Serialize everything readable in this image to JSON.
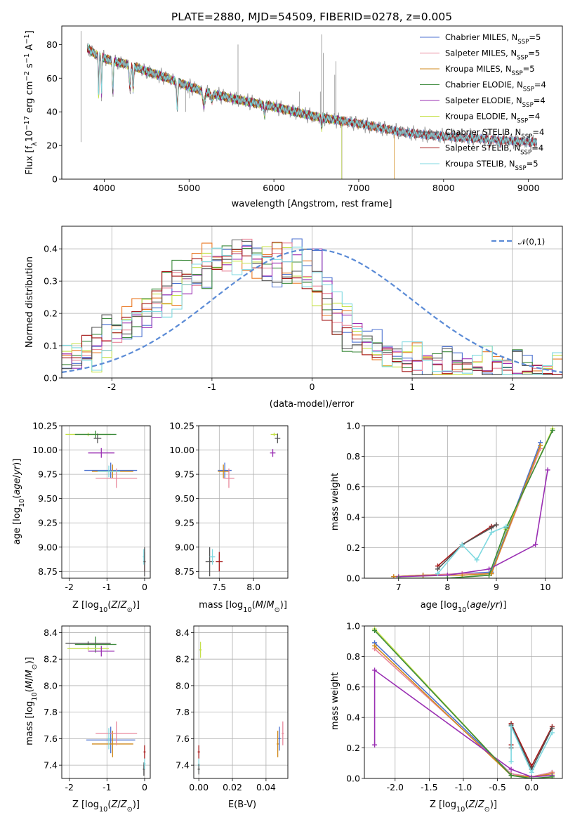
{
  "figure": {
    "title": "PLATE=2880, MJD=54509, FIBERID=0278, z=0.005"
  },
  "colors": {
    "Chabrier MILES": "#4c72d0",
    "Salpeter MILES": "#e9879b",
    "Kroupa MILES": "#d08a1c",
    "Chabrier ELODIE": "#3c8a3c",
    "Salpeter ELODIE": "#9a2fb3",
    "Kroupa ELODIE": "#c6e14a",
    "Chabrier STELIB": "#555555",
    "Salpeter STELIB": "#a51818",
    "Kroupa STELIB": "#7fd9e0",
    "hist_orange": "#ea7a26",
    "normal_curve": "#5b8bd6"
  },
  "chart_data": [
    {
      "id": "spectrum",
      "type": "line",
      "title": "PLATE=2880, MJD=54509, FIBERID=0278, z=0.005",
      "xlabel": "wavelength [Angstrom, rest frame]",
      "ylabel": "Flux [f_λ 10^-17 erg cm^-2 s^-1 A^-1]",
      "xlim": [
        3500,
        9400
      ],
      "ylim": [
        0,
        91
      ],
      "xticks": [
        4000,
        5000,
        6000,
        7000,
        8000,
        9000
      ],
      "yticks": [
        0,
        20,
        40,
        60,
        80
      ],
      "legend_loc": "upper right",
      "legend": [
        "Chabrier MILES, N_SSP=5",
        "Salpeter MILES, N_SSP=5",
        "Kroupa MILES, N_SSP=5",
        "Chabrier ELODIE, N_SSP=4",
        "Salpeter ELODIE, N_SSP=4",
        "Kroupa ELODIE, N_SSP=4",
        "Chabrier STELIB, N_SSP=4",
        "Salpeter STELIB, N_SSP=4",
        "Kroupa STELIB, N_SSP=5"
      ],
      "continuum": [
        [
          3800,
          78
        ],
        [
          3900,
          74
        ],
        [
          4000,
          72
        ],
        [
          4100,
          70
        ],
        [
          4200,
          69
        ],
        [
          4300,
          68
        ],
        [
          4500,
          64
        ],
        [
          4750,
          60
        ],
        [
          5000,
          55
        ],
        [
          5250,
          51
        ],
        [
          5500,
          48
        ],
        [
          5750,
          45.5
        ],
        [
          6000,
          43
        ],
        [
          6250,
          40
        ],
        [
          6500,
          37
        ],
        [
          6750,
          35
        ],
        [
          7000,
          33
        ],
        [
          7250,
          30.5
        ],
        [
          7500,
          28
        ],
        [
          7750,
          26.5
        ],
        [
          8000,
          25.5
        ],
        [
          8250,
          24.5
        ],
        [
          8500,
          24
        ],
        [
          8750,
          23
        ],
        [
          9000,
          22
        ],
        [
          9100,
          22
        ]
      ]
    },
    {
      "id": "residuals",
      "type": "line",
      "xlabel": "(data-model)/error",
      "ylabel": "Normed distribution",
      "xlim": [
        -2.5,
        2.5
      ],
      "ylim": [
        0,
        0.47
      ],
      "xticks": [
        -2,
        -1,
        0,
        1,
        2
      ],
      "yticks": [
        0.0,
        0.1,
        0.2,
        0.3,
        0.4
      ],
      "grid": true,
      "legend_loc": "upper right",
      "curve_label": "𝒩(0,1)",
      "curve": "standard normal pdf",
      "bin_width": 0.1,
      "hist_template": [
        0.07,
        0.06,
        0.05,
        0.07,
        0.06,
        0.08,
        0.07,
        0.12,
        0.11,
        0.14,
        0.13,
        0.16,
        0.15,
        0.18,
        0.17,
        0.22,
        0.2,
        0.25,
        0.24,
        0.27,
        0.26,
        0.31,
        0.28,
        0.32,
        0.3,
        0.34,
        0.36,
        0.38,
        0.33,
        0.37,
        0.35,
        0.36,
        0.39,
        0.41,
        0.38,
        0.37,
        0.33,
        0.36,
        0.34,
        0.38,
        0.35,
        0.4,
        0.32,
        0.31,
        0.33,
        0.38,
        0.27,
        0.3,
        0.25,
        0.22,
        0.19,
        0.17,
        0.15,
        0.14,
        0.12,
        0.11,
        0.1,
        0.09,
        0.08,
        0.07,
        0.06,
        0.07,
        0.05,
        0.06,
        0.04,
        0.05,
        0.05,
        0.04,
        0.04,
        0.03,
        0.05,
        0.03,
        0.04,
        0.03,
        0.04,
        0.03,
        0.04,
        0.04,
        0.03,
        0.03,
        0.03,
        0.03,
        0.02,
        0.03,
        0.03,
        0.02,
        0.02,
        0.02,
        0.02,
        0.02
      ]
    },
    {
      "id": "age_vs_Z",
      "type": "scatter",
      "xlabel": "Z [log10(Z/Z⊙)]",
      "ylabel": "age  [log10(age/yr)]",
      "xlim": [
        -2.2,
        0.15
      ],
      "ylim": [
        8.68,
        10.25
      ],
      "xticks": [
        -2,
        -1,
        0
      ],
      "yticks": [
        8.75,
        9.0,
        9.25,
        9.5,
        9.75,
        10.0,
        10.25
      ],
      "grid": true,
      "points": [
        {
          "model": "Kroupa ELODIE",
          "x": -1.5,
          "y": 10.16,
          "xerr": 0.6,
          "yerr": 0.0
        },
        {
          "model": "Chabrier ELODIE",
          "x": -1.3,
          "y": 10.16,
          "xerr": 0.55,
          "yerr": 0.04
        },
        {
          "model": "Chabrier STELIB",
          "x": -1.25,
          "y": 10.12,
          "xerr": 0.1,
          "yerr": 0.05
        },
        {
          "model": "Salpeter ELODIE",
          "x": -1.15,
          "y": 9.97,
          "xerr": 0.35,
          "yerr": 0.05
        },
        {
          "model": "Chabrier MILES",
          "x": -0.9,
          "y": 9.79,
          "xerr": 0.7,
          "yerr": 0.08
        },
        {
          "model": "Kroupa MILES",
          "x": -0.85,
          "y": 9.78,
          "xerr": 0.55,
          "yerr": 0.07
        },
        {
          "model": "Salpeter MILES",
          "x": -0.75,
          "y": 9.71,
          "xerr": 0.55,
          "yerr": 0.1
        },
        {
          "model": "Kroupa STELIB",
          "x": -0.95,
          "y": 9.78,
          "xerr": 0.3,
          "yerr": 0.06
        },
        {
          "model": "Salpeter STELIB",
          "x": 0.0,
          "y": 8.85,
          "xerr": 0.0,
          "yerr": 0.1
        },
        {
          "model": "Kroupa STELIB",
          "x": -0.02,
          "y": 8.9,
          "xerr": 0.0,
          "yerr": 0.08
        },
        {
          "model": "Chabrier STELIB",
          "x": 0.0,
          "y": 8.85,
          "xerr": 0.0,
          "yerr": 0.15
        }
      ]
    },
    {
      "id": "age_vs_mass",
      "type": "scatter",
      "xlabel": "mass [log10(M/M⊙)]",
      "ylabel": "",
      "xlim": [
        7.2,
        8.5
      ],
      "ylim": [
        8.68,
        10.25
      ],
      "xticks": [
        7.5,
        8.0
      ],
      "yticks": [
        8.75,
        9.0,
        9.25,
        9.5,
        9.75,
        10.0,
        10.25
      ],
      "grid": true,
      "points": [
        {
          "model": "Kroupa ELODIE",
          "x": 8.3,
          "y": 10.16,
          "xerr": 0.05,
          "yerr": 0.01
        },
        {
          "model": "Chabrier STELIB",
          "x": 8.35,
          "y": 10.12,
          "xerr": 0.04,
          "yerr": 0.05
        },
        {
          "model": "Salpeter ELODIE",
          "x": 8.28,
          "y": 9.97,
          "xerr": 0.04,
          "yerr": 0.04
        },
        {
          "model": "Chabrier MILES",
          "x": 7.58,
          "y": 9.79,
          "xerr": 0.1,
          "yerr": 0.08
        },
        {
          "model": "Kroupa MILES",
          "x": 7.56,
          "y": 9.78,
          "xerr": 0.08,
          "yerr": 0.07
        },
        {
          "model": "Salpeter MILES",
          "x": 7.64,
          "y": 9.71,
          "xerr": 0.08,
          "yerr": 0.1
        },
        {
          "model": "Chabrier STELIB",
          "x": 7.36,
          "y": 8.85,
          "xerr": 0.06,
          "yerr": 0.15
        },
        {
          "model": "Kroupa STELIB",
          "x": 7.4,
          "y": 8.9,
          "xerr": 0.04,
          "yerr": 0.08
        },
        {
          "model": "Salpeter STELIB",
          "x": 7.5,
          "y": 8.85,
          "xerr": 0.05,
          "yerr": 0.1
        }
      ]
    },
    {
      "id": "weight_vs_age",
      "type": "line",
      "xlabel": "age  [log10(age/yr)]",
      "ylabel": "mass weight",
      "xlim": [
        6.3,
        10.35
      ],
      "ylim": [
        0,
        1.0
      ],
      "xticks": [
        7,
        8,
        9,
        10
      ],
      "yticks": [
        0.0,
        0.2,
        0.4,
        0.6,
        0.8,
        1.0
      ],
      "grid": true,
      "series": [
        {
          "model": "Chabrier MILES",
          "x": [
            6.9,
            7.5,
            8.3,
            8.9,
            9.9
          ],
          "y": [
            0.01,
            0.02,
            0.03,
            0.04,
            0.89
          ]
        },
        {
          "model": "Salpeter MILES",
          "x": [
            6.9,
            7.5,
            8.3,
            8.9,
            9.9
          ],
          "y": [
            0.01,
            0.02,
            0.03,
            0.03,
            0.85
          ]
        },
        {
          "model": "Kroupa MILES",
          "x": [
            6.9,
            7.5,
            8.3,
            8.9,
            9.9
          ],
          "y": [
            0.01,
            0.02,
            0.02,
            0.03,
            0.87
          ]
        },
        {
          "model": "Salpeter ELODIE",
          "x": [
            7.0,
            8.0,
            8.85,
            9.8,
            10.05
          ],
          "y": [
            0.01,
            0.02,
            0.06,
            0.22,
            0.71
          ]
        },
        {
          "model": "Kroupa ELODIE",
          "x": [
            7.0,
            8.0,
            8.85,
            9.2,
            10.15
          ],
          "y": [
            0.0,
            0.0,
            0.02,
            0.32,
            0.98
          ]
        },
        {
          "model": "Chabrier ELODIE",
          "x": [
            7.0,
            8.0,
            8.85,
            9.2,
            10.15
          ],
          "y": [
            0.0,
            0.0,
            0.02,
            0.33,
            0.97
          ]
        },
        {
          "model": "Salpeter STELIB",
          "x": [
            7.8,
            8.3,
            8.9,
            9.0
          ],
          "y": [
            0.08,
            0.22,
            0.34,
            0.35
          ]
        },
        {
          "model": "Chabrier STELIB",
          "x": [
            7.8,
            8.3,
            8.9,
            9.0
          ],
          "y": [
            0.06,
            0.22,
            0.33,
            0.35
          ]
        },
        {
          "model": "Kroupa STELIB",
          "x": [
            7.8,
            8.3,
            8.6,
            8.9,
            9.2
          ],
          "y": [
            0.03,
            0.22,
            0.12,
            0.3,
            0.34
          ]
        }
      ]
    },
    {
      "id": "mass_vs_Z",
      "type": "scatter",
      "xlabel": "Z [log10(Z/Z⊙)]",
      "ylabel": "mass [log10(M/M⊙)]",
      "xlim": [
        -2.2,
        0.15
      ],
      "ylim": [
        7.3,
        8.45
      ],
      "xticks": [
        -2,
        -1,
        0
      ],
      "yticks": [
        7.4,
        7.6,
        7.8,
        8.0,
        8.2,
        8.4
      ],
      "grid": true,
      "points": [
        {
          "model": "Chabrier ELODIE",
          "x": -1.3,
          "y": 8.31,
          "xerr": 0.55,
          "yerr": 0.06
        },
        {
          "model": "Chabrier STELIB",
          "x": -1.5,
          "y": 8.32,
          "xerr": 0.6,
          "yerr": 0.0
        },
        {
          "model": "Kroupa ELODIE",
          "x": -1.5,
          "y": 8.28,
          "xerr": 0.55,
          "yerr": 0.0
        },
        {
          "model": "Salpeter ELODIE",
          "x": -1.15,
          "y": 8.26,
          "xerr": 0.35,
          "yerr": 0.04
        },
        {
          "model": "Chabrier MILES",
          "x": -0.9,
          "y": 7.59,
          "xerr": 0.65,
          "yerr": 0.1
        },
        {
          "model": "Kroupa MILES",
          "x": -0.85,
          "y": 7.56,
          "xerr": 0.55,
          "yerr": 0.1
        },
        {
          "model": "Salpeter MILES",
          "x": -0.75,
          "y": 7.64,
          "xerr": 0.55,
          "yerr": 0.09
        },
        {
          "model": "Kroupa STELIB",
          "x": -0.95,
          "y": 7.6,
          "xerr": 0.0,
          "yerr": 0.08
        },
        {
          "model": "Salpeter STELIB",
          "x": 0.0,
          "y": 7.5,
          "xerr": 0.0,
          "yerr": 0.05
        },
        {
          "model": "Chabrier STELIB",
          "x": -0.02,
          "y": 7.37,
          "xerr": 0.0,
          "yerr": 0.05
        },
        {
          "model": "Kroupa STELIB",
          "x": 0.0,
          "y": 7.41,
          "xerr": 0.0,
          "yerr": 0.04
        }
      ]
    },
    {
      "id": "mass_vs_EBV",
      "type": "scatter",
      "xlabel": "E(B-V)",
      "ylabel": "",
      "xlim": [
        -0.003,
        0.053
      ],
      "ylim": [
        7.3,
        8.45
      ],
      "xticks": [
        0.0,
        0.02,
        0.04
      ],
      "yticks": [
        7.4,
        7.6,
        7.8,
        8.0,
        8.2,
        8.4
      ],
      "grid": true,
      "points": [
        {
          "model": "Kroupa ELODIE",
          "x": 0.001,
          "y": 8.27,
          "xerr": 0.0,
          "yerr": 0.06
        },
        {
          "model": "Salpeter STELIB",
          "x": 0.0,
          "y": 7.5,
          "xerr": 0.0,
          "yerr": 0.05
        },
        {
          "model": "Kroupa STELIB",
          "x": 0.0,
          "y": 7.4,
          "xerr": 0.0,
          "yerr": 0.05
        },
        {
          "model": "Chabrier STELIB",
          "x": 0.0,
          "y": 7.37,
          "xerr": 0.0,
          "yerr": 0.04
        },
        {
          "model": "Kroupa MILES",
          "x": 0.047,
          "y": 7.56,
          "xerr": 0.0,
          "yerr": 0.1
        },
        {
          "model": "Chabrier MILES",
          "x": 0.048,
          "y": 7.6,
          "xerr": 0.0,
          "yerr": 0.09
        },
        {
          "model": "Salpeter MILES",
          "x": 0.05,
          "y": 7.64,
          "xerr": 0.0,
          "yerr": 0.09
        }
      ]
    },
    {
      "id": "weight_vs_Z",
      "type": "line",
      "xlabel": "Z [log10(Z/Z⊙)]",
      "ylabel": "mass weight",
      "xlim": [
        -2.45,
        0.45
      ],
      "ylim": [
        0,
        1.0
      ],
      "xticks": [
        -2.0,
        -1.5,
        -1.0,
        -0.5,
        0.0
      ],
      "yticks": [
        0.0,
        0.2,
        0.4,
        0.6,
        0.8,
        1.0
      ],
      "grid": true,
      "series": [
        {
          "model": "Chabrier MILES",
          "x": [
            -2.3,
            -0.3,
            0.0,
            0.3
          ],
          "y": [
            0.89,
            0.03,
            0.01,
            0.04
          ]
        },
        {
          "model": "Salpeter MILES",
          "x": [
            -2.3,
            -0.3,
            0.0,
            0.3
          ],
          "y": [
            0.85,
            0.03,
            0.01,
            0.04
          ]
        },
        {
          "model": "Kroupa MILES",
          "x": [
            -2.3,
            -0.3,
            0.0,
            0.3
          ],
          "y": [
            0.87,
            0.02,
            0.01,
            0.03
          ]
        },
        {
          "model": "Salpeter ELODIE",
          "x": [
            -2.3,
            -2.3,
            -0.3,
            0.0,
            0.3
          ],
          "y": [
            0.22,
            0.71,
            0.06,
            0.01,
            0.02
          ]
        },
        {
          "model": "Kroupa ELODIE",
          "x": [
            -2.3,
            -0.3,
            0.0,
            0.3
          ],
          "y": [
            0.98,
            0.02,
            0.0,
            0.0
          ]
        },
        {
          "model": "Chabrier ELODIE",
          "x": [
            -2.3,
            -0.3,
            0.0,
            0.3
          ],
          "y": [
            0.97,
            0.02,
            0.0,
            0.01
          ]
        },
        {
          "model": "Salpeter STELIB",
          "x": [
            -0.3,
            -0.3,
            0.0,
            0.3
          ],
          "y": [
            0.22,
            0.36,
            0.08,
            0.34
          ]
        },
        {
          "model": "Chabrier STELIB",
          "x": [
            -0.3,
            -0.3,
            0.0,
            0.3
          ],
          "y": [
            0.2,
            0.35,
            0.06,
            0.33
          ]
        },
        {
          "model": "Kroupa STELIB",
          "x": [
            -0.3,
            -0.3,
            0.0,
            0.3
          ],
          "y": [
            0.11,
            0.34,
            0.04,
            0.3
          ]
        }
      ]
    }
  ]
}
